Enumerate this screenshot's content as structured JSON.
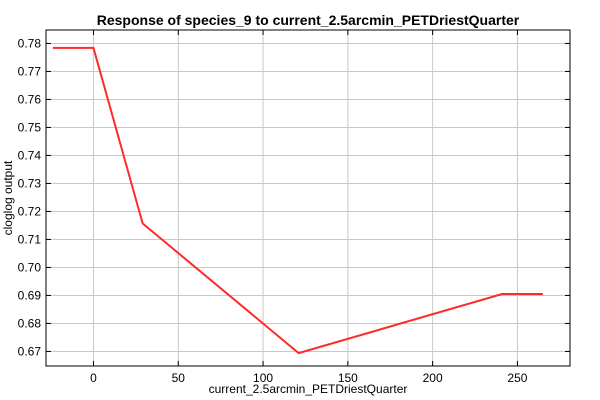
{
  "chart_data": {
    "type": "line",
    "title": "Response of species_9 to current_2.5arcmin_PETDriestQuarter",
    "xlabel": "current_2.5arcmin_PETDriestQuarter",
    "ylabel": "cloglog output",
    "xlim": [
      -28,
      281
    ],
    "ylim": [
      0.6648,
      0.7848
    ],
    "x_ticks": [
      0,
      50,
      100,
      150,
      200,
      250
    ],
    "x_tick_labels": [
      "0",
      "50",
      "100",
      "150",
      "200",
      "250"
    ],
    "y_ticks": [
      0.67,
      0.68,
      0.69,
      0.7,
      0.71,
      0.72,
      0.73,
      0.74,
      0.75,
      0.76,
      0.77,
      0.78
    ],
    "y_tick_labels": [
      "0.67",
      "0.68",
      "0.69",
      "0.70",
      "0.71",
      "0.72",
      "0.73",
      "0.74",
      "0.75",
      "0.76",
      "0.77",
      "0.78"
    ],
    "grid": true,
    "series": [
      {
        "color": "#ff2a2a",
        "x": [
          -24,
          0,
          29,
          121,
          241,
          265
        ],
        "y": [
          0.7784,
          0.7784,
          0.7157,
          0.6694,
          0.6905,
          0.6905
        ]
      }
    ]
  }
}
